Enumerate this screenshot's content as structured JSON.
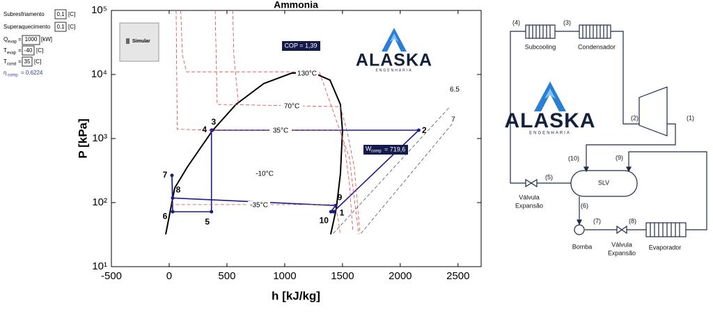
{
  "inputs": {
    "subcooling": {
      "label": "Subresfriamento",
      "value": "0,1",
      "unit": "[C]"
    },
    "superheat": {
      "label": "Superaquecimento",
      "value": "0,1",
      "unit": "[C]"
    },
    "q_evap": {
      "symbol": "Q",
      "sub": "evap",
      "eq": "=",
      "value": "1000",
      "unit": "[kW]"
    },
    "t_evap": {
      "symbol": "T",
      "sub": "evap",
      "eq": "=",
      "value": "-40",
      "unit": "[C]"
    },
    "t_cond": {
      "symbol": "T",
      "sub": "cond",
      "eq": "=",
      "value": "35",
      "unit": "[C]"
    },
    "eta_comp": {
      "symbol": "η",
      "sub": "comp",
      "text": "= 0,6224"
    }
  },
  "button": "Simular",
  "logo": {
    "name": "ALASKA",
    "tagline": "ENGENHARIA"
  },
  "chart_data": {
    "type": "line",
    "title": "Ammonia",
    "xlabel": "h [kJ/kg]",
    "ylabel": "P [kPa]",
    "xlim": [
      -500,
      2700
    ],
    "ylim": [
      10,
      100000
    ],
    "log_y": true,
    "xticks": [
      -500,
      0,
      500,
      1000,
      1500,
      2000,
      2500
    ],
    "yticks": [
      {
        "value": 10,
        "label": "10¹"
      },
      {
        "value": 100,
        "label": "10²"
      },
      {
        "value": 1000,
        "label": "10³"
      },
      {
        "value": 10000,
        "label": "10⁴"
      },
      {
        "value": 100000,
        "label": "10⁵"
      }
    ],
    "series": [
      {
        "color": "#000000",
        "x": [
          -30,
          48,
          157,
          373,
          578,
          819,
          1060,
          1241,
          1392,
          1482,
          1500,
          1482,
          1446,
          1398
        ],
        "values": [
          32,
          169,
          359,
          1318,
          3412,
          7228,
          10500,
          10790,
          8180,
          3412,
          1318,
          279,
          80,
          32
        ]
      },
      {
        "color": "#1a1a8c",
        "x": [
          1422,
          2160,
          373,
          366,
          366,
          30,
          24,
          30,
          1440,
          1400
        ],
        "values": [
          72,
          1350,
          1350,
          1350,
          72,
          72,
          266,
          118,
          90,
          72
        ],
        "labels": [
          "1",
          "2",
          "3",
          "4",
          "5",
          "6",
          "7",
          "8",
          "9",
          "10"
        ]
      },
      {
        "name": "130°C",
        "color": "#e04040",
        "dash": true,
        "x": [
          100,
          115,
          150,
          1060,
          1300,
          1560,
          1640
        ],
        "values": [
          100000,
          20000,
          11000,
          11000,
          11000,
          500,
          32
        ]
      },
      {
        "name": "70°C",
        "color": "#e04040",
        "dash": true,
        "x": [
          398,
          416,
          1482,
          1542,
          1602,
          1651
        ],
        "values": [
          100000,
          3412,
          3150,
          1250,
          358,
          33
        ]
      },
      {
        "name": "35°C",
        "color": "#e04040",
        "dash": true,
        "x": [
          60,
          70,
          366,
          1480,
          1520,
          1560,
          1590
        ],
        "values": [
          100000,
          1400,
          1350,
          1350,
          700,
          200,
          35
        ]
      },
      {
        "name": "-10°C",
        "color": "#e04040",
        "dash": true,
        "x": [
          550,
          560,
          600
        ],
        "values": [
          100000,
          20000,
          3412
        ]
      },
      {
        "name": "-35°C",
        "color": "#e04040",
        "dash": true,
        "x": [
          10,
          1430,
          1460,
          1480
        ],
        "values": [
          93,
          93,
          60,
          33
        ]
      },
      {
        "name": "6.5",
        "color": "#555555",
        "dash": true,
        "x": [
          2420,
          1420
        ],
        "values": [
          3000,
          33
        ]
      },
      {
        "name": "7",
        "color": "#555555",
        "dash": true,
        "x": [
          2450,
          1660
        ],
        "values": [
          1700,
          33
        ]
      }
    ],
    "cop": "COP = 1,39",
    "w_comp": {
      "symbol": "W",
      "sub": "comp",
      "text": "= 719,6"
    }
  },
  "diagram": {
    "streams": [
      "(1)",
      "(2)",
      "(3)",
      "(4)",
      "(5)",
      "(6)",
      "(7)",
      "(8)",
      "(9)",
      "(10)"
    ],
    "subcooling": "Subcooling",
    "condenser": "Condensador",
    "separator": "SLV",
    "valve": [
      "Válvula",
      "Expansão"
    ],
    "pump": "Bomba",
    "valve2": [
      "Válvula",
      "Expansão"
    ],
    "evaporator": "Evaporador"
  }
}
